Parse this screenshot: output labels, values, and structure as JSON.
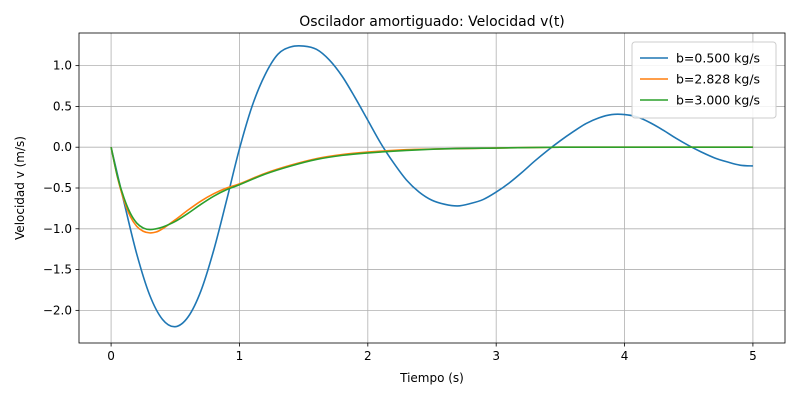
{
  "chart_data": {
    "type": "line",
    "title": "Oscilador amortiguado: Velocidad v(t)",
    "xlabel": "Tiempo (s)",
    "ylabel": "Velocidad v (m/s)",
    "xlim": [
      -0.25,
      5.25
    ],
    "ylim": [
      -2.4,
      1.4
    ],
    "xticks": [
      0,
      1,
      2,
      3,
      4,
      5
    ],
    "xtick_labels": [
      "0",
      "1",
      "2",
      "3",
      "4",
      "5"
    ],
    "yticks": [
      -2.0,
      -1.5,
      -1.0,
      -0.5,
      0.0,
      0.5,
      1.0
    ],
    "ytick_labels": [
      "−2.0",
      "−1.5",
      "−1.0",
      "−0.5",
      "0.0",
      "0.5",
      "1.0"
    ],
    "grid": true,
    "legend_position": "top-right",
    "series": [
      {
        "name": "b=0.500 kg/s",
        "color": "#1f77b4",
        "x": [
          0,
          0.1,
          0.2,
          0.3,
          0.4,
          0.5,
          0.6,
          0.7,
          0.8,
          0.9,
          1.0,
          1.1,
          1.2,
          1.3,
          1.4,
          1.5,
          1.6,
          1.7,
          1.8,
          1.9,
          2.0,
          2.1,
          2.2,
          2.3,
          2.4,
          2.5,
          2.6,
          2.7,
          2.8,
          2.9,
          3.0,
          3.1,
          3.2,
          3.3,
          3.4,
          3.5,
          3.6,
          3.7,
          3.8,
          3.9,
          4.0,
          4.1,
          4.2,
          4.3,
          4.4,
          4.5,
          4.6,
          4.7,
          4.8,
          4.9,
          5.0
        ],
        "y": [
          0,
          -0.67,
          -1.31,
          -1.81,
          -2.11,
          -2.2,
          -2.08,
          -1.76,
          -1.26,
          -0.65,
          -0.02,
          0.51,
          0.89,
          1.14,
          1.23,
          1.24,
          1.2,
          1.07,
          0.87,
          0.61,
          0.33,
          0.05,
          -0.19,
          -0.4,
          -0.55,
          -0.65,
          -0.7,
          -0.72,
          -0.69,
          -0.64,
          -0.55,
          -0.44,
          -0.31,
          -0.17,
          -0.04,
          0.08,
          0.19,
          0.29,
          0.36,
          0.4,
          0.4,
          0.37,
          0.3,
          0.21,
          0.11,
          0.02,
          -0.06,
          -0.13,
          -0.18,
          -0.22,
          -0.23
        ]
      },
      {
        "name": "b=2.828 kg/s",
        "color": "#ff7f0e",
        "x": [
          0,
          0.05,
          0.1,
          0.15,
          0.2,
          0.25,
          0.3,
          0.35,
          0.4,
          0.5,
          0.6,
          0.7,
          0.8,
          0.9,
          1.0,
          1.2,
          1.4,
          1.6,
          1.8,
          2.0,
          2.3,
          2.6,
          3.0,
          3.5,
          4.0,
          4.5,
          5.0
        ],
        "y": [
          0,
          -0.37,
          -0.65,
          -0.85,
          -0.97,
          -1.03,
          -1.05,
          -1.04,
          -1.0,
          -0.89,
          -0.77,
          -0.66,
          -0.57,
          -0.5,
          -0.45,
          -0.32,
          -0.22,
          -0.14,
          -0.09,
          -0.06,
          -0.03,
          -0.02,
          -0.01,
          0,
          0,
          0,
          0
        ]
      },
      {
        "name": "b=3.000 kg/s",
        "color": "#2ca02c",
        "x": [
          0,
          0.05,
          0.1,
          0.15,
          0.2,
          0.25,
          0.3,
          0.35,
          0.4,
          0.5,
          0.6,
          0.7,
          0.8,
          0.9,
          1.0,
          1.2,
          1.4,
          1.6,
          1.8,
          2.0,
          2.3,
          2.6,
          3.0,
          3.5,
          4.0,
          4.5,
          5.0
        ],
        "y": [
          0,
          -0.36,
          -0.62,
          -0.81,
          -0.93,
          -0.99,
          -1.01,
          -1.0,
          -0.98,
          -0.91,
          -0.81,
          -0.7,
          -0.6,
          -0.52,
          -0.46,
          -0.33,
          -0.23,
          -0.15,
          -0.1,
          -0.07,
          -0.04,
          -0.02,
          -0.01,
          0,
          0,
          0,
          0
        ]
      }
    ]
  }
}
